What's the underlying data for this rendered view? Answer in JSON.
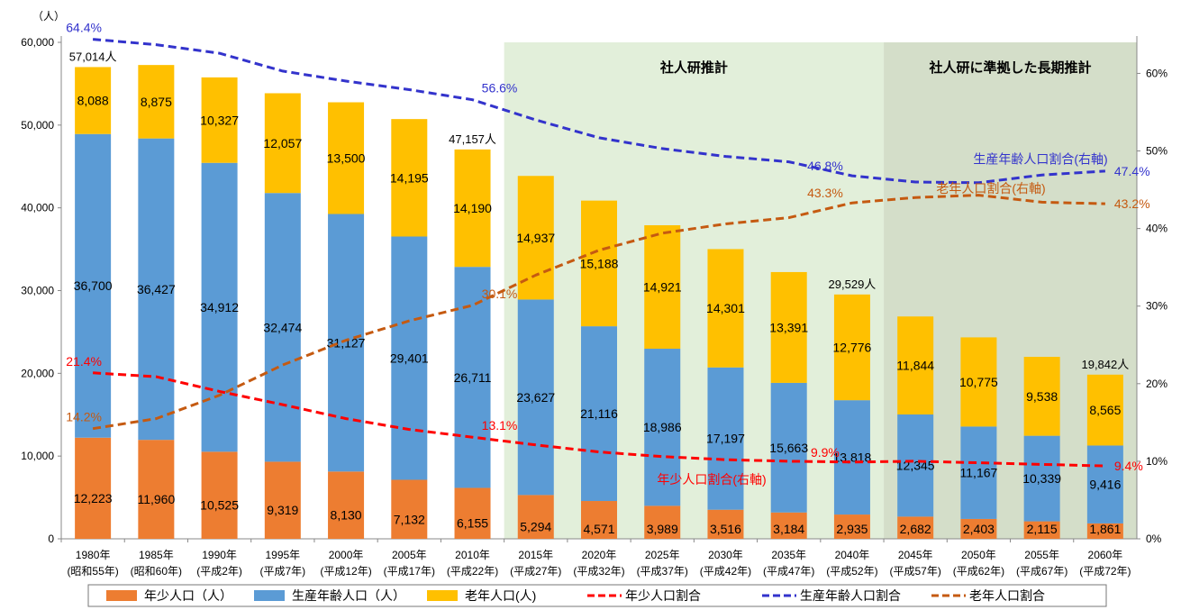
{
  "chart_data": {
    "type": "bar",
    "title": "",
    "y_unit": "（人）",
    "y_ticks": [
      "0",
      "10,000",
      "20,000",
      "30,000",
      "40,000",
      "50,000",
      "60,000"
    ],
    "ylim": [
      0,
      60000
    ],
    "y2_ticks": [
      "0%",
      "10%",
      "20%",
      "30%",
      "40%",
      "50%",
      "60%"
    ],
    "y2lim": [
      0,
      64
    ],
    "categories": [
      {
        "year": "1980年",
        "era": "(昭和55年)"
      },
      {
        "year": "1985年",
        "era": "(昭和60年)"
      },
      {
        "year": "1990年",
        "era": "(平成2年)"
      },
      {
        "year": "1995年",
        "era": "(平成7年)"
      },
      {
        "year": "2000年",
        "era": "(平成12年)"
      },
      {
        "year": "2005年",
        "era": "(平成17年)"
      },
      {
        "year": "2010年",
        "era": "(平成22年)"
      },
      {
        "year": "2015年",
        "era": "(平成27年)"
      },
      {
        "year": "2020年",
        "era": "(平成32年)"
      },
      {
        "year": "2025年",
        "era": "(平成37年)"
      },
      {
        "year": "2030年",
        "era": "(平成42年)"
      },
      {
        "year": "2035年",
        "era": "(平成47年)"
      },
      {
        "year": "2040年",
        "era": "(平成52年)"
      },
      {
        "year": "2045年",
        "era": "(平成57年)"
      },
      {
        "year": "2050年",
        "era": "(平成62年)"
      },
      {
        "year": "2055年",
        "era": "(平成67年)"
      },
      {
        "year": "2060年",
        "era": "(平成72年)"
      }
    ],
    "bar_series": [
      {
        "name": "年少人口（人）",
        "color": "#ED7D31",
        "values": [
          12223,
          11960,
          10525,
          9319,
          8130,
          7132,
          6155,
          5294,
          4571,
          3989,
          3516,
          3184,
          2935,
          2682,
          2403,
          2115,
          1861
        ],
        "labels": [
          "12,223",
          "11,960",
          "10,525",
          "9,319",
          "8,130",
          "7,132",
          "6,155",
          "5,294",
          "4,571",
          "3,989",
          "3,516",
          "3,184",
          "2,935",
          "2,682",
          "2,403",
          "2,115",
          "1,861"
        ]
      },
      {
        "name": "生産年齢人口（人）",
        "color": "#5B9BD5",
        "values": [
          36700,
          36427,
          34912,
          32474,
          31127,
          29401,
          26711,
          23627,
          21116,
          18986,
          17197,
          15663,
          13818,
          12345,
          11167,
          10339,
          9416
        ],
        "labels": [
          "36,700",
          "36,427",
          "34,912",
          "32,474",
          "31,127",
          "29,401",
          "26,711",
          "23,627",
          "21,116",
          "18,986",
          "17,197",
          "15,663",
          "13,818",
          "12,345",
          "11,167",
          "10,339",
          "9,416"
        ]
      },
      {
        "name": "老年人口(人)",
        "color": "#FFC000",
        "values": [
          8088,
          8875,
          10327,
          12057,
          13500,
          14195,
          14190,
          14937,
          15188,
          14921,
          14301,
          13391,
          12776,
          11844,
          10775,
          9538,
          8565
        ],
        "labels": [
          "8,088",
          "8,875",
          "10,327",
          "12,057",
          "13,500",
          "14,195",
          "14,190",
          "14,937",
          "15,188",
          "14,921",
          "14,301",
          "13,391",
          "12,776",
          "11,844",
          "10,775",
          "9,538",
          "8,565"
        ]
      }
    ],
    "totals": [
      {
        "index": 0,
        "label": "57,014人"
      },
      {
        "index": 6,
        "label": "47,157人"
      },
      {
        "index": 12,
        "label": "29,529人"
      },
      {
        "index": 16,
        "label": "19,842人"
      }
    ],
    "line_series": [
      {
        "name": "年少人口割合",
        "color": "#FF0000",
        "values": [
          21.4,
          20.9,
          19.0,
          17.3,
          15.5,
          14.1,
          13.1,
          12.1,
          11.2,
          10.6,
          10.2,
          10.0,
          9.9,
          10.0,
          9.8,
          9.6,
          9.4
        ]
      },
      {
        "name": "生産年齢人口割合",
        "color": "#3333CC",
        "values": [
          64.4,
          63.7,
          62.6,
          60.3,
          59.0,
          57.9,
          56.6,
          54.0,
          51.7,
          50.3,
          49.3,
          48.6,
          46.8,
          46.0,
          45.9,
          46.9,
          47.4
        ]
      },
      {
        "name": "老年人口割合",
        "color": "#C55A11",
        "values": [
          14.2,
          15.5,
          18.5,
          22.4,
          25.6,
          28.1,
          30.1,
          34.0,
          37.2,
          39.4,
          40.6,
          41.4,
          43.3,
          44.0,
          44.3,
          43.4,
          43.2
        ]
      }
    ],
    "point_labels": [
      {
        "series": 1,
        "index": 0,
        "text": "64.4%",
        "color": "#3333CC"
      },
      {
        "series": 1,
        "index": 6,
        "text": "56.6%",
        "color": "#3333CC"
      },
      {
        "series": 1,
        "index": 12,
        "text": "46.8%",
        "color": "#3333CC"
      },
      {
        "series": 1,
        "index": 16,
        "text": "47.4%",
        "color": "#3333CC"
      },
      {
        "series": 0,
        "index": 0,
        "text": "21.4%",
        "color": "#FF0000"
      },
      {
        "series": 0,
        "index": 6,
        "text": "13.1%",
        "color": "#FF0000"
      },
      {
        "series": 0,
        "index": 12,
        "text": "9.9%",
        "color": "#FF0000"
      },
      {
        "series": 0,
        "index": 16,
        "text": "9.4%",
        "color": "#FF0000"
      },
      {
        "series": 2,
        "index": 0,
        "text": "14.2%",
        "color": "#C55A11"
      },
      {
        "series": 2,
        "index": 6,
        "text": "30.1%",
        "color": "#C55A11"
      },
      {
        "series": 2,
        "index": 12,
        "text": "43.3%",
        "color": "#C55A11"
      },
      {
        "series": 2,
        "index": 16,
        "text": "43.2%",
        "color": "#C55A11"
      }
    ],
    "series_labels": [
      {
        "text": "生産年齢人口割合(右軸)",
        "color": "#3333CC"
      },
      {
        "text": "老年人口割合(右軸)",
        "color": "#C55A11"
      },
      {
        "text": "年少人口割合(右軸)",
        "color": "#FF0000"
      }
    ],
    "regions": [
      {
        "label": "社人研推計",
        "from_index": 7,
        "to_index": 12,
        "color": "#E2EFDA"
      },
      {
        "label": "社人研に準拠した長期推計",
        "from_index": 13,
        "to_index": 16,
        "color": "#D4DEC9"
      }
    ],
    "legend": {
      "placement": "bottom",
      "items": [
        {
          "label": "年少人口（人）",
          "kind": "box",
          "color": "#ED7D31"
        },
        {
          "label": "生産年齢人口（人）",
          "kind": "box",
          "color": "#5B9BD5"
        },
        {
          "label": "老年人口(人)",
          "kind": "box",
          "color": "#FFC000"
        },
        {
          "label": "年少人口割合",
          "kind": "dash",
          "color": "#FF0000"
        },
        {
          "label": "生産年齢人口割合",
          "kind": "dash",
          "color": "#3333CC"
        },
        {
          "label": "老年人口割合",
          "kind": "dash",
          "color": "#C55A11"
        }
      ]
    },
    "grid": false
  }
}
